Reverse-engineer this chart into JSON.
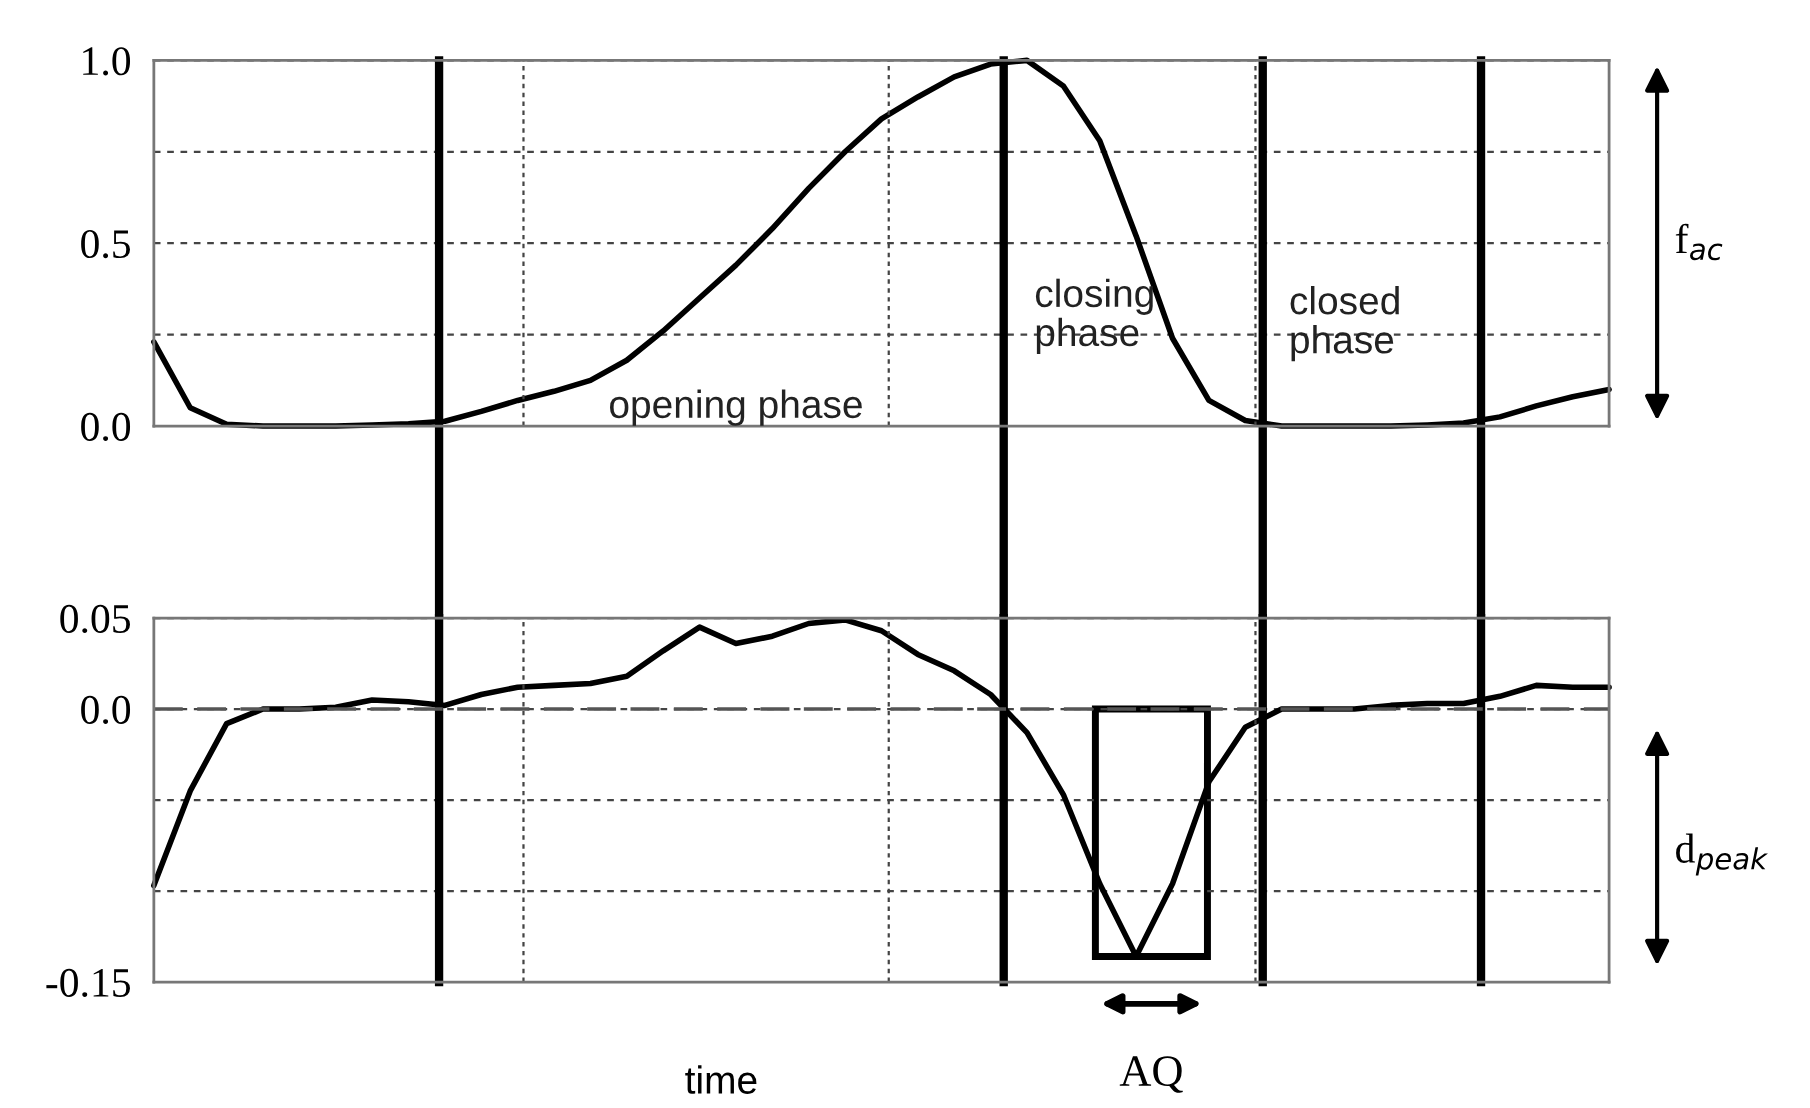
{
  "chart_data": [
    {
      "type": "line",
      "categories": [
        null,
        null,
        null,
        null,
        null,
        null,
        null,
        null,
        null,
        null,
        null,
        null,
        null,
        null,
        null,
        null,
        null,
        null,
        null,
        null,
        null,
        null,
        null,
        null,
        null,
        null,
        null,
        null,
        null,
        null,
        null,
        null,
        null,
        null,
        null,
        null,
        null,
        null,
        null,
        null,
        null
      ],
      "series": [
        {
          "color": "#000000",
          "values": [
            0.23,
            0.05,
            0.005,
            0,
            0,
            0,
            0.003,
            0.006,
            0.013,
            0.04,
            0.07,
            0.095,
            0.125,
            0.18,
            0.26,
            0.35,
            0.44,
            0.54,
            0.65,
            0.75,
            0.84,
            0.9,
            0.955,
            0.99,
            1.0,
            0.93,
            0.78,
            0.52,
            0.24,
            0.07,
            0.015,
            0,
            0,
            0,
            0,
            0.003,
            0.008,
            0.025,
            0.055,
            0.08,
            0.1
          ]
        }
      ],
      "ylim": [
        0,
        1.0
      ],
      "yticks": [
        {
          "value": 0,
          "label": "0.0"
        },
        {
          "value": 0.25,
          "label": null
        },
        {
          "value": 0.5,
          "label": "0.5"
        },
        {
          "value": 0.75,
          "label": null
        },
        {
          "value": 1.0,
          "label": "1.0"
        }
      ],
      "grid": "y",
      "tick_labels": "y",
      "annotations": [
        "opening phase",
        "closing\nphase",
        "closed\nphase",
        "f$_{ac}$"
      ]
    },
    {
      "type": "line",
      "categories": [
        null,
        null,
        null,
        null,
        null,
        null,
        null,
        null,
        null,
        null,
        null,
        null,
        null,
        null,
        null,
        null,
        null,
        null,
        null,
        null,
        null,
        null,
        null,
        null,
        null,
        null,
        null,
        null,
        null,
        null,
        null,
        null,
        null,
        null,
        null,
        null,
        null,
        null,
        null,
        null,
        null
      ],
      "series": [
        {
          "color": "#000000",
          "values": [
            -0.097,
            -0.045,
            -0.008,
            0,
            0,
            0.001,
            0.005,
            0.004,
            0.002,
            0.008,
            0.012,
            0.013,
            0.014,
            0.018,
            0.032,
            0.045,
            0.036,
            0.04,
            0.047,
            0.049,
            0.043,
            0.03,
            0.021,
            0.008,
            -0.013,
            -0.047,
            -0.096,
            -0.136,
            -0.096,
            -0.04,
            -0.01,
            0,
            0,
            0,
            0.002,
            0.003,
            0.003,
            0.007,
            0.013,
            0.012,
            0.012
          ]
        }
      ],
      "ylim": [
        -0.15,
        0.05
      ],
      "yticks": [
        {
          "value": -0.15,
          "label": "-0.15"
        },
        {
          "value": -0.1,
          "label": null
        },
        {
          "value": -0.05,
          "label": null
        },
        {
          "value": 0,
          "label": "0.0"
        },
        {
          "value": 0.05,
          "label": "0.05"
        }
      ],
      "grid": "y",
      "tick_labels": "y",
      "xlabel": "time",
      "ref_lines": [
        {
          "axis": "y",
          "value": 0,
          "color": "#555555",
          "line_style": "dashed"
        }
      ],
      "annotations": [
        "d$_{peak}$",
        "AQ"
      ]
    }
  ]
}
